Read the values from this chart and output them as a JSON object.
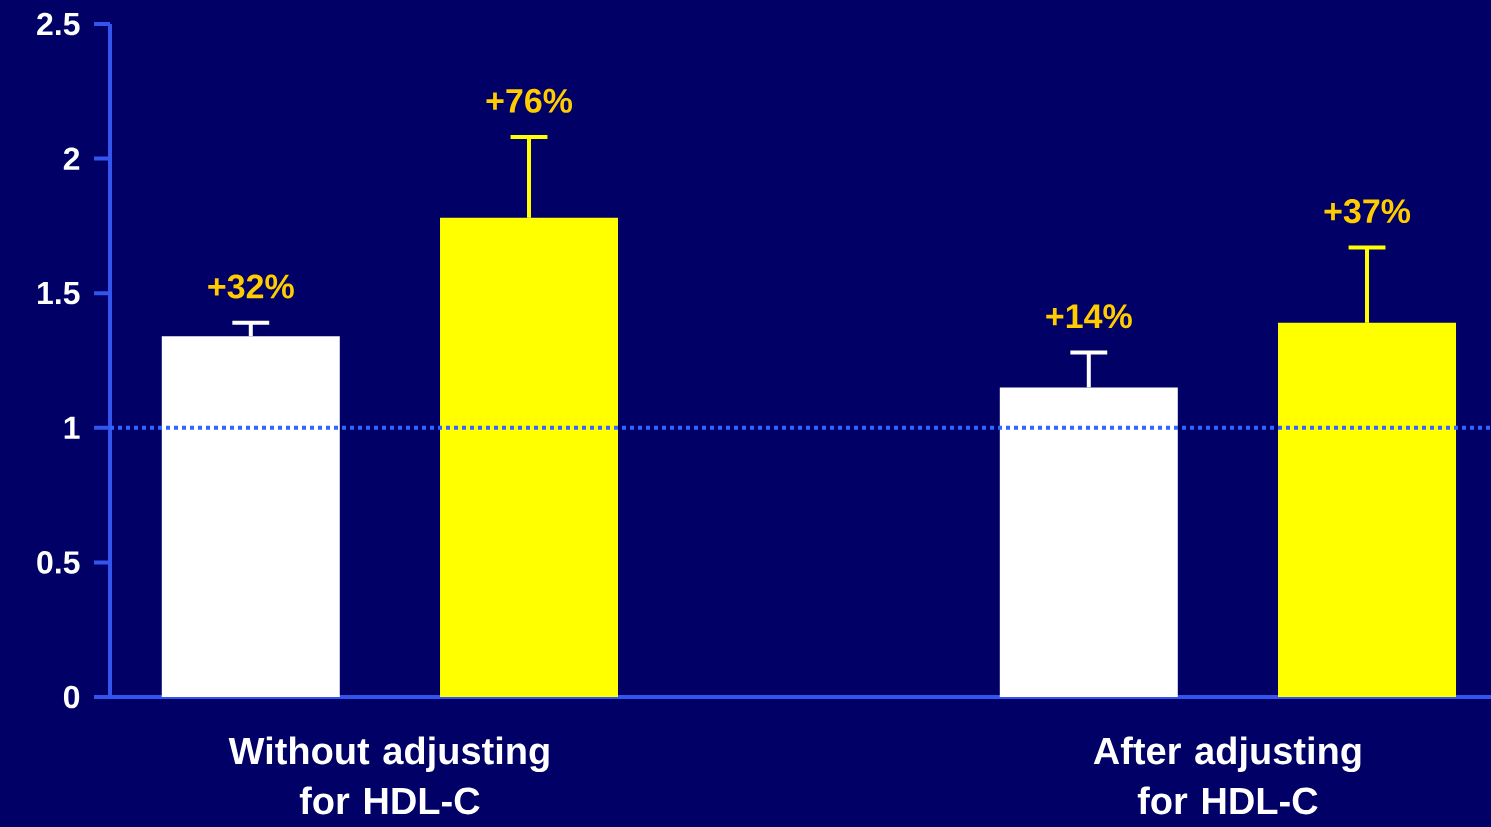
{
  "chart_data": {
    "type": "bar",
    "categories": [
      "Without adjusting for HDL-C",
      "After adjusting for HDL-C"
    ],
    "ylim": [
      0,
      2.5
    ],
    "yticks": [
      0,
      0.5,
      1,
      1.5,
      2,
      2.5
    ],
    "series": [
      {
        "color": "#ffffff",
        "values": [
          1.34,
          1.15
        ],
        "errors": [
          [
            1.34,
            1.39
          ],
          [
            1.15,
            1.28
          ]
        ]
      },
      {
        "color": "#ffff00",
        "values": [
          1.78,
          1.39
        ],
        "errors": [
          [
            1.78,
            2.08
          ],
          [
            1.39,
            1.67
          ]
        ]
      }
    ],
    "annotations": [
      "+32%",
      "+76%",
      "+14%",
      "+37%"
    ],
    "ref_lines": [
      {
        "axis": "y",
        "value": 1,
        "color": "#3366ff",
        "line_style": "dotted"
      }
    ]
  }
}
